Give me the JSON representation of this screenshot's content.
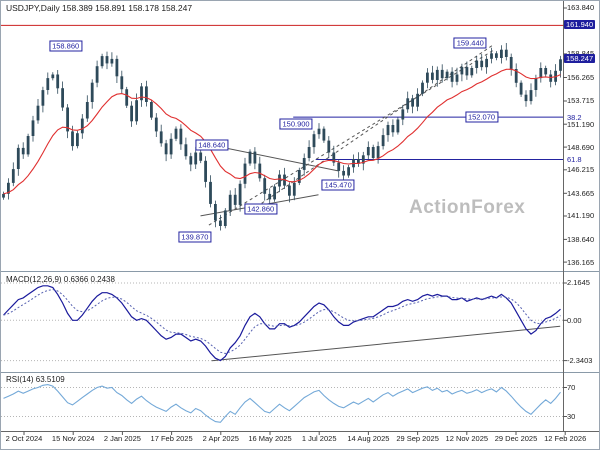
{
  "header": {
    "title": "USDJPY,Daily 158.389 158.891 158.178 158.247"
  },
  "watermark": "ActionForex",
  "colors": {
    "candle": "#2e4a5a",
    "ma": "#e03030",
    "macd": "#1a1a9c",
    "signal": "#5560b0",
    "rsi": "#74a9d8",
    "resistance": "#cc2020",
    "fib": "#2323a0",
    "trendline": "#555555",
    "grid": "#b5b5b5",
    "highlight_bg": "#1f1f9e"
  },
  "chart_data": {
    "type": "candlestick+indicators",
    "symbol": "USDJPY",
    "timeframe": "Daily",
    "ohlc_display": {
      "open": "158.389",
      "high": "158.891",
      "low": "158.178",
      "close": "158.247"
    },
    "x_labels": [
      "2 Oct 2024",
      "15 Nov 2024",
      "2 Jan 2025",
      "17 Feb 2025",
      "2 Apr 2025",
      "16 May 2025",
      "1 Jul 2025",
      "14 Aug 2025",
      "29 Sep 2025",
      "12 Nov 2025",
      "29 Dec 2025",
      "12 Feb 2026"
    ],
    "price_panel": {
      "ylim": [
        135.2,
        164.6
      ],
      "closes": [
        143.6,
        144.8,
        146.3,
        148.6,
        147.9,
        149.9,
        151.6,
        153.2,
        154.9,
        156.2,
        156.6,
        155.1,
        153.0,
        150.4,
        148.8,
        150.2,
        151.8,
        153.6,
        155.7,
        157.5,
        158.6,
        157.8,
        158.3,
        156.4,
        155.0,
        153.2,
        151.5,
        153.8,
        155.3,
        153.6,
        151.9,
        150.4,
        149.1,
        147.9,
        149.6,
        150.7,
        149.0,
        147.7,
        146.8,
        148.1,
        147.2,
        144.9,
        142.5,
        140.7,
        140.1,
        141.8,
        143.5,
        142.4,
        144.7,
        146.9,
        148.2,
        146.9,
        145.3,
        143.6,
        143.0,
        144.4,
        145.7,
        144.5,
        143.4,
        144.8,
        146.2,
        147.5,
        148.7,
        150.1,
        150.7,
        149.4,
        148.1,
        147.0,
        146.1,
        145.6,
        146.5,
        147.4,
        146.9,
        147.8,
        148.7,
        147.5,
        148.8,
        150.0,
        151.1,
        150.3,
        151.7,
        152.8,
        154.0,
        153.1,
        154.5,
        155.7,
        156.8,
        156.0,
        157.1,
        156.2,
        156.9,
        155.8,
        156.6,
        157.4,
        156.5,
        157.3,
        158.1,
        157.4,
        158.3,
        158.9,
        158.4,
        159.3,
        158.5,
        157.2,
        155.7,
        154.4,
        153.7,
        154.9,
        156.2,
        157.3,
        156.6,
        155.8,
        157.0,
        158.25
      ],
      "axis_ticks": [
        {
          "label": "163.840",
          "value": 163.84
        },
        {
          "label": "158.845",
          "value": 158.845
        },
        {
          "label": "156.265",
          "value": 156.265
        },
        {
          "label": "153.715",
          "value": 153.715
        },
        {
          "label": "151.190",
          "value": 151.19
        },
        {
          "label": "148.690",
          "value": 148.69
        },
        {
          "label": "146.215",
          "value": 146.215
        },
        {
          "label": "143.665",
          "value": 143.665
        },
        {
          "label": "141.190",
          "value": 141.19
        },
        {
          "label": "138.640",
          "value": 138.64
        },
        {
          "label": "136.165",
          "value": 136.165
        }
      ],
      "highlight_ticks": [
        {
          "label": "161.940",
          "value": 161.94
        },
        {
          "label": "158.247",
          "value": 158.247
        }
      ],
      "hlines": [
        {
          "value": 161.94,
          "color": "resistance",
          "x0": 0,
          "x1": 1,
          "label": ""
        },
        {
          "value": 151.96,
          "color": "fib",
          "x0": 0.52,
          "x1": 1,
          "label": "38.2"
        },
        {
          "value": 147.34,
          "color": "fib",
          "x0": 0.56,
          "x1": 1,
          "label": "61.8"
        }
      ],
      "trendlines": [
        {
          "x1": 0.37,
          "p1": 140.2,
          "x2": 0.875,
          "p2": 159.2,
          "dash": "3,3"
        },
        {
          "x1": 0.455,
          "p1": 142.2,
          "x2": 0.875,
          "p2": 159.8,
          "dash": "3,3"
        },
        {
          "x1": 0.355,
          "p1": 141.2,
          "x2": 0.565,
          "p2": 143.5,
          "dash": ""
        },
        {
          "x1": 0.375,
          "p1": 148.9,
          "x2": 0.6,
          "p2": 146.1,
          "dash": ""
        }
      ],
      "annotations": [
        {
          "text": "158.860",
          "x": 0.115,
          "p": 159.7
        },
        {
          "text": "159.440",
          "x": 0.835,
          "p": 160.0
        },
        {
          "text": "148.640",
          "x": 0.375,
          "p": 148.9
        },
        {
          "text": "150.900",
          "x": 0.525,
          "p": 151.2
        },
        {
          "text": "145.470",
          "x": 0.6,
          "p": 144.6
        },
        {
          "text": "142.860",
          "x": 0.462,
          "p": 142.0
        },
        {
          "text": "139.870",
          "x": 0.345,
          "p": 138.9
        },
        {
          "text": "152.070",
          "x": 0.855,
          "p": 152.0
        }
      ]
    },
    "macd_panel": {
      "label": "MACD(12,26,9) 0.6366 0.2438",
      "ylim": [
        -3.0,
        2.8
      ],
      "ticks": [
        {
          "label": "2.1645",
          "value": 2.1645
        },
        {
          "label": "0.00",
          "value": 0
        },
        {
          "label": "-2.3403",
          "value": -2.3403
        }
      ],
      "values": [
        0.3,
        0.6,
        0.9,
        1.2,
        1.3,
        1.5,
        1.7,
        1.9,
        2.0,
        2.0,
        1.9,
        1.5,
        1.0,
        0.4,
        0.0,
        0.0,
        0.3,
        0.7,
        1.1,
        1.4,
        1.6,
        1.6,
        1.5,
        1.3,
        1.0,
        0.6,
        0.2,
        0.0,
        0.1,
        0.0,
        -0.3,
        -0.6,
        -0.9,
        -1.1,
        -1.0,
        -0.8,
        -0.8,
        -1.0,
        -1.2,
        -1.1,
        -1.2,
        -1.5,
        -1.9,
        -2.2,
        -2.34,
        -2.1,
        -1.6,
        -1.3,
        -0.9,
        -0.3,
        0.2,
        0.4,
        0.2,
        -0.2,
        -0.5,
        -0.5,
        -0.2,
        -0.2,
        -0.4,
        -0.3,
        -0.1,
        0.2,
        0.5,
        0.8,
        1.0,
        0.9,
        0.6,
        0.2,
        -0.1,
        -0.3,
        -0.3,
        -0.1,
        0.0,
        0.1,
        0.2,
        0.2,
        0.4,
        0.6,
        0.8,
        0.8,
        0.9,
        1.1,
        1.2,
        1.1,
        1.2,
        1.4,
        1.5,
        1.4,
        1.5,
        1.4,
        1.4,
        1.2,
        1.2,
        1.3,
        1.1,
        1.2,
        1.3,
        1.2,
        1.3,
        1.4,
        1.3,
        1.5,
        1.3,
        1.0,
        0.5,
        0.0,
        -0.5,
        -0.8,
        -0.6,
        -0.2,
        0.1,
        0.2,
        0.4,
        0.64
      ],
      "trendline": {
        "x1": 0.375,
        "v1": -2.35,
        "x2": 0.995,
        "v2": -0.35
      }
    },
    "rsi_panel": {
      "label": "RSI(14) 63.5109",
      "ylim": [
        10,
        90
      ],
      "ticks": [
        {
          "label": "70",
          "value": 70
        },
        {
          "label": "30",
          "value": 30
        }
      ],
      "values": [
        55,
        58,
        61,
        65,
        62,
        65,
        68,
        70,
        73,
        74,
        72,
        65,
        57,
        49,
        46,
        51,
        56,
        61,
        66,
        70,
        72,
        69,
        70,
        63,
        59,
        53,
        48,
        54,
        58,
        52,
        47,
        43,
        40,
        37,
        43,
        47,
        42,
        38,
        35,
        41,
        38,
        32,
        27,
        23,
        22,
        30,
        37,
        33,
        42,
        50,
        55,
        49,
        43,
        37,
        35,
        41,
        47,
        42,
        38,
        44,
        50,
        56,
        60,
        64,
        66,
        59,
        53,
        48,
        44,
        42,
        46,
        50,
        47,
        51,
        55,
        50,
        55,
        60,
        63,
        58,
        62,
        65,
        68,
        63,
        66,
        69,
        71,
        66,
        69,
        64,
        66,
        61,
        64,
        66,
        62,
        64,
        67,
        63,
        66,
        68,
        64,
        70,
        65,
        58,
        50,
        43,
        37,
        33,
        40,
        47,
        53,
        48,
        55,
        63.5
      ]
    }
  }
}
